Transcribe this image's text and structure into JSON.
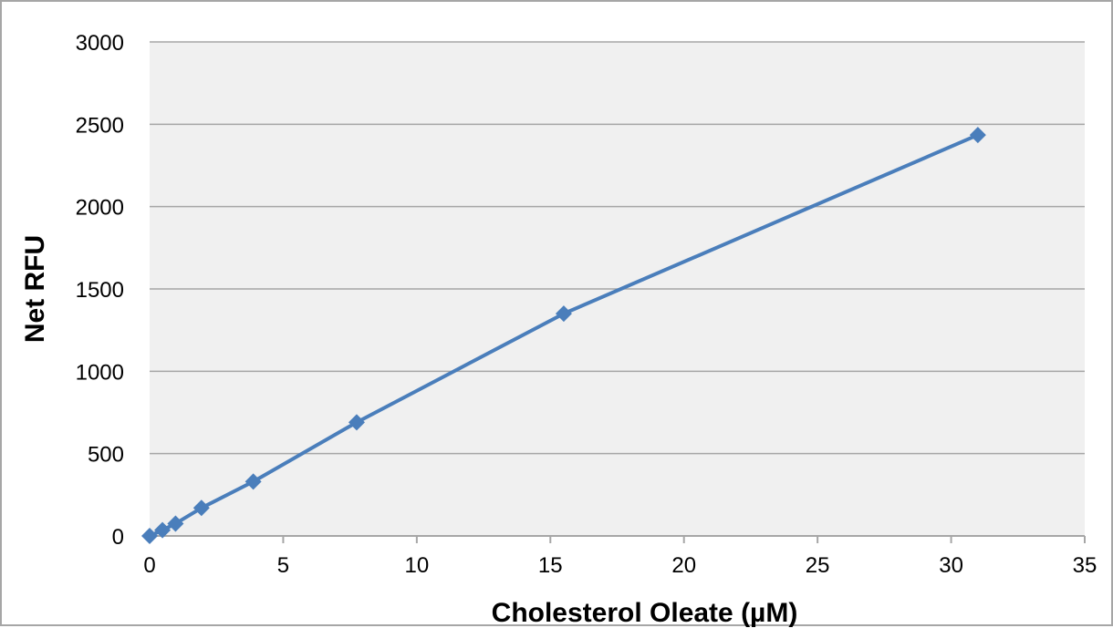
{
  "chart_data": {
    "type": "scatter",
    "title": "",
    "xlabel": "Cholesterol Oleate (µM)",
    "ylabel": "Net RFU",
    "xlim": [
      0,
      35
    ],
    "ylim": [
      0,
      3000
    ],
    "xticks": [
      0,
      5,
      10,
      15,
      20,
      25,
      30,
      35
    ],
    "yticks": [
      0,
      500,
      1000,
      1500,
      2000,
      2500,
      3000
    ],
    "grid": "horizontal",
    "legend": "none",
    "series": [
      {
        "x": [
          0,
          0.48,
          0.97,
          1.94,
          3.88,
          7.75,
          15.5,
          31
        ],
        "y": [
          0,
          35,
          75,
          170,
          330,
          690,
          1350,
          2435
        ],
        "marker": "diamond",
        "line": "solid",
        "color": "#4a7ebb"
      }
    ],
    "colors": {
      "plot_background": "#f0f0f0",
      "gridline": "#a6a6a6",
      "series": "#4a7ebb"
    }
  }
}
